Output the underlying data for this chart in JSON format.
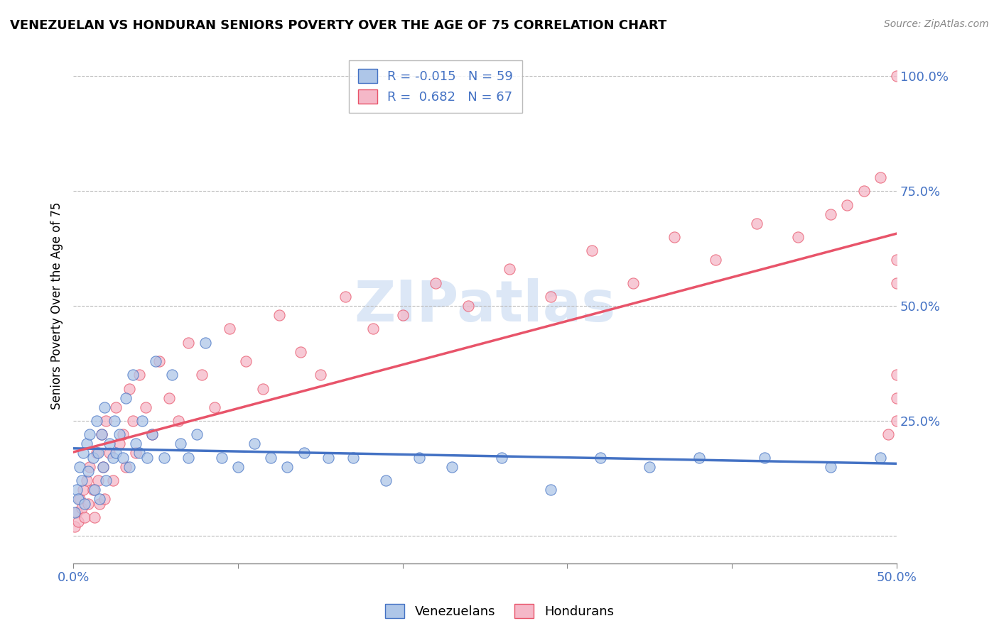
{
  "title": "VENEZUELAN VS HONDURAN SENIORS POVERTY OVER THE AGE OF 75 CORRELATION CHART",
  "source": "Source: ZipAtlas.com",
  "ylabel": "Seniors Poverty Over the Age of 75",
  "xlim": [
    0.0,
    0.5
  ],
  "ylim": [
    -0.06,
    1.06
  ],
  "R_venezuelan": -0.015,
  "N_venezuelan": 59,
  "R_honduran": 0.682,
  "N_honduran": 67,
  "venezuelan_color": "#aec6e8",
  "honduran_color": "#f5b8c8",
  "venezuelan_line_color": "#4472c4",
  "honduran_line_color": "#e8546a",
  "watermark_color": "#c5d8f0",
  "venezuelan_x": [
    0.001,
    0.002,
    0.003,
    0.004,
    0.005,
    0.006,
    0.007,
    0.008,
    0.009,
    0.01,
    0.012,
    0.013,
    0.014,
    0.015,
    0.016,
    0.017,
    0.018,
    0.019,
    0.02,
    0.022,
    0.024,
    0.025,
    0.026,
    0.028,
    0.03,
    0.032,
    0.034,
    0.036,
    0.038,
    0.04,
    0.042,
    0.045,
    0.048,
    0.05,
    0.055,
    0.06,
    0.065,
    0.07,
    0.075,
    0.08,
    0.09,
    0.1,
    0.11,
    0.12,
    0.13,
    0.14,
    0.155,
    0.17,
    0.19,
    0.21,
    0.23,
    0.26,
    0.29,
    0.32,
    0.35,
    0.38,
    0.42,
    0.46,
    0.49
  ],
  "venezuelan_y": [
    0.05,
    0.1,
    0.08,
    0.15,
    0.12,
    0.18,
    0.07,
    0.2,
    0.14,
    0.22,
    0.17,
    0.1,
    0.25,
    0.18,
    0.08,
    0.22,
    0.15,
    0.28,
    0.12,
    0.2,
    0.17,
    0.25,
    0.18,
    0.22,
    0.17,
    0.3,
    0.15,
    0.35,
    0.2,
    0.18,
    0.25,
    0.17,
    0.22,
    0.38,
    0.17,
    0.35,
    0.2,
    0.17,
    0.22,
    0.42,
    0.17,
    0.15,
    0.2,
    0.17,
    0.15,
    0.18,
    0.17,
    0.17,
    0.12,
    0.17,
    0.15,
    0.17,
    0.1,
    0.17,
    0.15,
    0.17,
    0.17,
    0.15,
    0.17
  ],
  "honduran_x": [
    0.001,
    0.002,
    0.003,
    0.004,
    0.005,
    0.006,
    0.007,
    0.008,
    0.009,
    0.01,
    0.012,
    0.013,
    0.014,
    0.015,
    0.016,
    0.017,
    0.018,
    0.019,
    0.02,
    0.022,
    0.024,
    0.026,
    0.028,
    0.03,
    0.032,
    0.034,
    0.036,
    0.038,
    0.04,
    0.044,
    0.048,
    0.052,
    0.058,
    0.064,
    0.07,
    0.078,
    0.086,
    0.095,
    0.105,
    0.115,
    0.125,
    0.138,
    0.15,
    0.165,
    0.182,
    0.2,
    0.22,
    0.24,
    0.265,
    0.29,
    0.315,
    0.34,
    0.365,
    0.39,
    0.415,
    0.44,
    0.46,
    0.47,
    0.48,
    0.49,
    0.495,
    0.5,
    0.5,
    0.5,
    0.5,
    0.5,
    0.5
  ],
  "honduran_y": [
    0.02,
    0.05,
    0.03,
    0.08,
    0.06,
    0.1,
    0.04,
    0.12,
    0.07,
    0.15,
    0.1,
    0.04,
    0.18,
    0.12,
    0.07,
    0.22,
    0.15,
    0.08,
    0.25,
    0.18,
    0.12,
    0.28,
    0.2,
    0.22,
    0.15,
    0.32,
    0.25,
    0.18,
    0.35,
    0.28,
    0.22,
    0.38,
    0.3,
    0.25,
    0.42,
    0.35,
    0.28,
    0.45,
    0.38,
    0.32,
    0.48,
    0.4,
    0.35,
    0.52,
    0.45,
    0.48,
    0.55,
    0.5,
    0.58,
    0.52,
    0.62,
    0.55,
    0.65,
    0.6,
    0.68,
    0.65,
    0.7,
    0.72,
    0.75,
    0.78,
    0.22,
    0.25,
    0.3,
    0.35,
    0.55,
    0.6,
    1.0
  ]
}
